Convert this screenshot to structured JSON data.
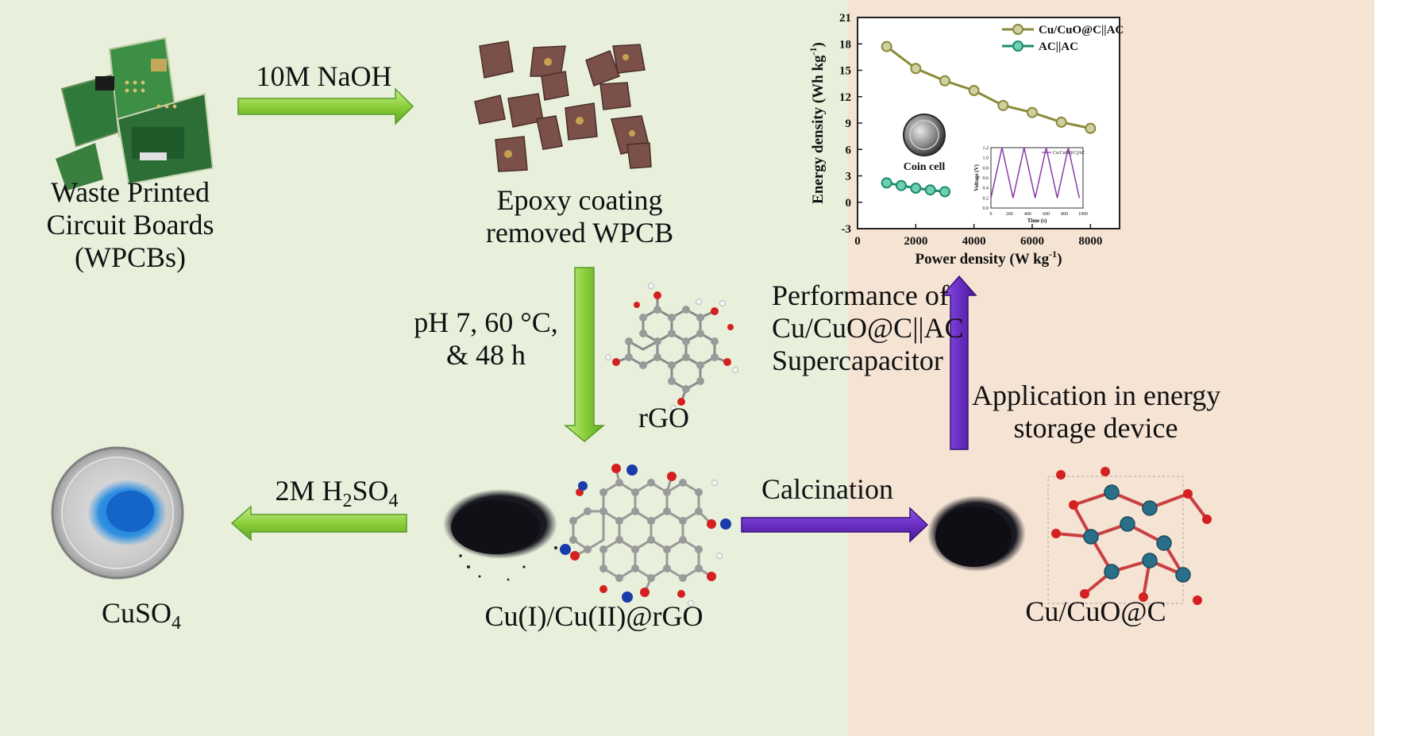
{
  "labels": {
    "wpcb": [
      "Waste Printed",
      "Circuit Boards",
      "(WPCBs)"
    ],
    "epoxy": [
      "Epoxy coating",
      "removed WPCB"
    ],
    "naoh": "10M NaOH",
    "conditions": [
      "pH 7, 60 °C,",
      "& 48 h"
    ],
    "rgo": "rGO",
    "h2so4": {
      "pre": "2M H",
      "sub1": "2",
      "mid": "SO",
      "sub2": "4"
    },
    "cuso4": {
      "pre": "CuSO",
      "sub": "4"
    },
    "cu_rgo": "Cu(I)/Cu(II)@rGO",
    "calcination": "Calcination",
    "cucuo": "Cu/CuO@C",
    "application": [
      "Application in energy",
      "storage device"
    ],
    "performance": [
      "Performance of",
      "Cu/CuO@C||AC",
      "Supercapacitor"
    ]
  },
  "colors": {
    "green_arrow": "#8ccf3c",
    "purple_arrow": "#6a2ec4",
    "left_bg": "#e8f0dc",
    "right_bg": "#f5e3d3",
    "series1": "#8a8a3a",
    "series2": "#1e8a6e",
    "inset_line": "#8a3aa8",
    "atom_red": "#d42020",
    "atom_blue": "#1a3caa",
    "atom_teal": "#2a6f8a",
    "atom_grey": "#9a9a9a"
  },
  "chart_data": {
    "type": "line",
    "xlabel": "Power density (W kg",
    "xlabel_sup": "-1",
    "xlabel_end": ")",
    "ylabel": "Energy density (Wh kg",
    "ylabel_sup": "-1",
    "ylabel_end": ")",
    "xlim": [
      0,
      9000
    ],
    "ylim": [
      -3,
      21
    ],
    "xticks": [
      0,
      2000,
      4000,
      6000,
      8000
    ],
    "yticks": [
      -3,
      0,
      3,
      6,
      9,
      12,
      15,
      18,
      21
    ],
    "legend": "top-right",
    "series": [
      {
        "name": "Cu/CuO@C||AC",
        "x": [
          1000,
          2000,
          3000,
          4000,
          5000,
          6000,
          7000,
          8000
        ],
        "y": [
          17.7,
          15.2,
          13.8,
          12.7,
          11.0,
          10.2,
          9.1,
          8.4
        ]
      },
      {
        "name": "AC||AC",
        "x": [
          1000,
          1500,
          2000,
          2500,
          3000
        ],
        "y": [
          2.2,
          1.9,
          1.6,
          1.4,
          1.2
        ]
      }
    ],
    "annotation": "Coin cell",
    "inset": {
      "legend": "Cu/CuO@C||AC",
      "xlabel": "Time (s)",
      "ylabel": "Voltage (V)",
      "xticks": [
        0,
        200,
        400,
        600,
        800,
        1000
      ],
      "yticks": [
        0.0,
        0.2,
        0.4,
        0.6,
        0.8,
        1.0,
        1.2
      ],
      "xlim": [
        0,
        1000
      ],
      "ylim": [
        0,
        1.2
      ],
      "x": [
        0,
        120,
        240,
        360,
        480,
        600,
        720,
        840,
        960
      ],
      "y": [
        0.2,
        1.2,
        0.2,
        1.2,
        0.2,
        1.2,
        0.2,
        1.2,
        0.2
      ]
    }
  }
}
